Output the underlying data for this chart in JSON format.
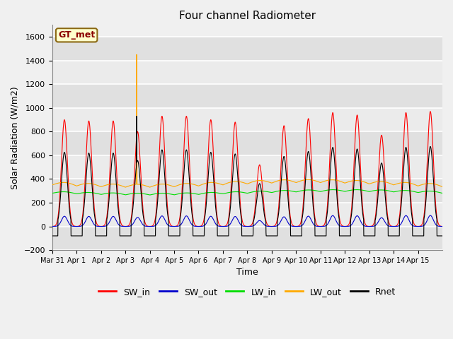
{
  "title": "Four channel Radiometer",
  "xlabel": "Time",
  "ylabel": "Solar Radiation (W/m2)",
  "ylim": [
    -200,
    1700
  ],
  "yticks": [
    -200,
    0,
    200,
    400,
    600,
    800,
    1000,
    1200,
    1400,
    1600
  ],
  "fig_bg_color": "#f0f0f0",
  "plot_bg_color": "#f0f0f0",
  "grid_color": "white",
  "station_label": "GT_met",
  "legend_entries": [
    "SW_in",
    "SW_out",
    "LW_in",
    "LW_out",
    "Rnet"
  ],
  "legend_colors": [
    "#ff0000",
    "#0000cc",
    "#00dd00",
    "#ffaa00",
    "#000000"
  ],
  "line_colors": {
    "SW_in": "#ff0000",
    "SW_out": "#0000cc",
    "LW_in": "#00dd00",
    "LW_out": "#ffaa00",
    "Rnet": "#000000"
  },
  "n_days": 16,
  "tick_labels": [
    "Mar 31",
    "Apr 1",
    "Apr 2",
    "Apr 3",
    "Apr 4",
    "Apr 5",
    "Apr 6",
    "Apr 7",
    "Apr 8",
    "Apr 9",
    "Apr 10",
    "Apr 11",
    "Apr 12",
    "Apr 13",
    "Apr 14",
    "Apr 15"
  ]
}
